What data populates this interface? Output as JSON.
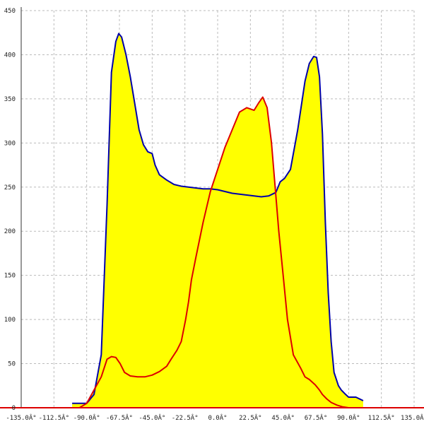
{
  "chart_data": {
    "type": "area",
    "title": "",
    "xlabel": "",
    "ylabel": "",
    "xlim": [
      -135,
      135
    ],
    "ylim": [
      0,
      450
    ],
    "grid": true,
    "x_ticks": [
      -135,
      -112.5,
      -90,
      -67.5,
      -45,
      -22.5,
      0,
      22.5,
      45,
      67.5,
      90,
      112.5,
      135
    ],
    "x_tick_labels": [
      "-135.0Â°",
      "-112.5Â°",
      "-90.0Â°",
      "-67.5Â°",
      "-45.0Â°",
      "-22.5Â°",
      "0.0Â°",
      "22.5Â°",
      "45.0Â°",
      "67.5Â°",
      "90.0Â°",
      "112.5Â°",
      "135.0Â°"
    ],
    "y_ticks": [
      0,
      50,
      100,
      150,
      200,
      250,
      300,
      350,
      400,
      450
    ],
    "y_tick_labels": [
      "0",
      "50",
      "100",
      "150",
      "200",
      "250",
      "300",
      "350",
      "400",
      "450"
    ],
    "fill_color": "#ffff00",
    "series": [
      {
        "color": "#0000aa",
        "x": [
          -100,
          -90,
          -85,
          -80,
          -76,
          -73,
          -70,
          -68,
          -66,
          -63,
          -60,
          -57,
          -54,
          -51,
          -48,
          -45,
          -43,
          -40,
          -35,
          -30,
          -25,
          -20,
          -15,
          -10,
          -5,
          0,
          5,
          10,
          15,
          20,
          25,
          30,
          35,
          40,
          43,
          46,
          50,
          55,
          60,
          63,
          66,
          68,
          70,
          72,
          74,
          76,
          78,
          80,
          83,
          85,
          88,
          90,
          95,
          100
        ],
        "y": [
          5,
          5,
          15,
          60,
          230,
          380,
          415,
          424,
          420,
          400,
          375,
          345,
          315,
          298,
          290,
          288,
          275,
          264,
          258,
          253,
          251,
          250,
          249,
          248,
          248,
          247,
          245,
          243,
          242,
          241,
          240,
          239,
          240,
          244,
          256,
          260,
          270,
          315,
          370,
          390,
          398,
          397,
          375,
          310,
          210,
          130,
          75,
          40,
          25,
          20,
          15,
          12,
          12,
          8
        ]
      },
      {
        "color": "#dd0000",
        "x": [
          -105,
          -95,
          -90,
          -85,
          -80,
          -76,
          -73,
          -70,
          -67,
          -64,
          -60,
          -55,
          -50,
          -45,
          -40,
          -35,
          -32,
          -28,
          -25,
          -22,
          -20,
          -18,
          -15,
          -10,
          -5,
          0,
          5,
          10,
          15,
          20,
          25,
          28,
          31,
          34,
          37,
          40,
          42,
          45,
          48,
          52,
          57,
          60,
          63,
          67,
          70,
          72,
          75,
          78,
          82,
          86,
          90,
          95,
          100
        ],
        "y": [
          0,
          0,
          5,
          20,
          35,
          55,
          58,
          57,
          50,
          40,
          36,
          35,
          35,
          37,
          41,
          47,
          55,
          65,
          75,
          100,
          120,
          145,
          170,
          210,
          245,
          270,
          295,
          315,
          335,
          340,
          337,
          345,
          352,
          340,
          300,
          240,
          200,
          150,
          100,
          60,
          45,
          35,
          32,
          26,
          20,
          15,
          10,
          6,
          3,
          1,
          0,
          0,
          0
        ]
      }
    ]
  }
}
